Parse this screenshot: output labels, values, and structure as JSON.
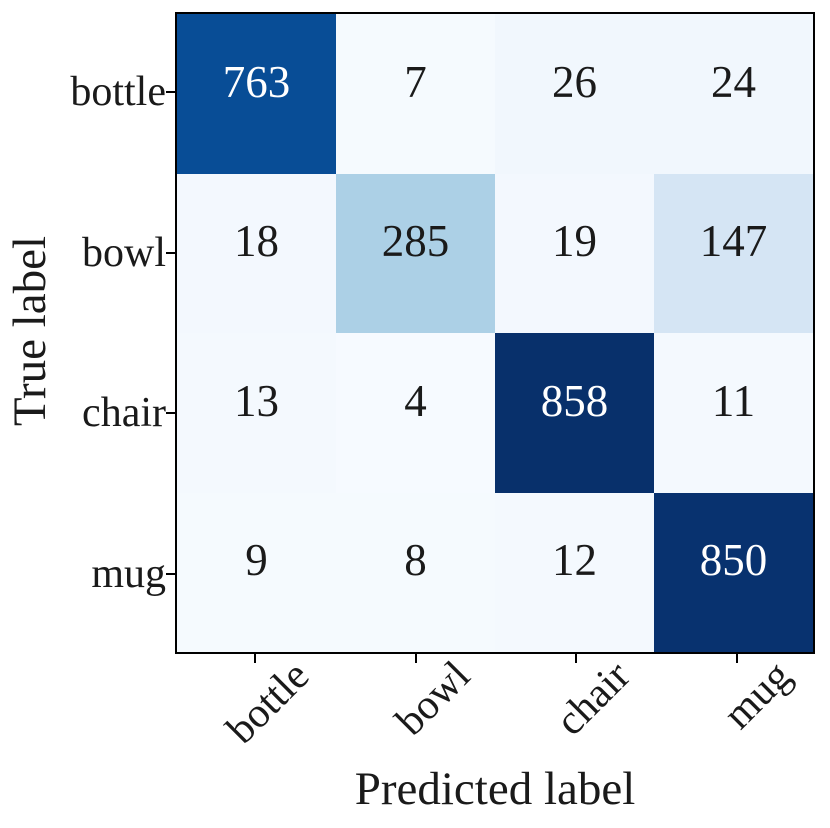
{
  "chart_data": {
    "type": "heatmap",
    "title": "",
    "xlabel": "Predicted label",
    "ylabel": "True label",
    "x_categories": [
      "bottle",
      "bowl",
      "chair",
      "mug"
    ],
    "y_categories": [
      "bottle",
      "bowl",
      "chair",
      "mug"
    ],
    "rows": [
      {
        "label": "bottle",
        "values": [
          763,
          7,
          26,
          24
        ]
      },
      {
        "label": "bowl",
        "values": [
          18,
          285,
          19,
          147
        ]
      },
      {
        "label": "chair",
        "values": [
          13,
          4,
          858,
          11
        ]
      },
      {
        "label": "mug",
        "values": [
          9,
          8,
          12,
          850
        ]
      }
    ],
    "vmin": 0,
    "vmax": 858,
    "colormap": "Blues",
    "colormap_stops": [
      "#f7fbff",
      "#deebf7",
      "#c6dbef",
      "#9ecae1",
      "#6baed6",
      "#4292c6",
      "#2171b5",
      "#08519c",
      "#08306b"
    ],
    "cell_text_light": "#ffffff",
    "cell_text_dark": "#1a1a1a",
    "spine_color": "#000000",
    "background": "#ffffff",
    "grid": false,
    "legend": "none",
    "x_tick_rotation_deg": 45
  }
}
